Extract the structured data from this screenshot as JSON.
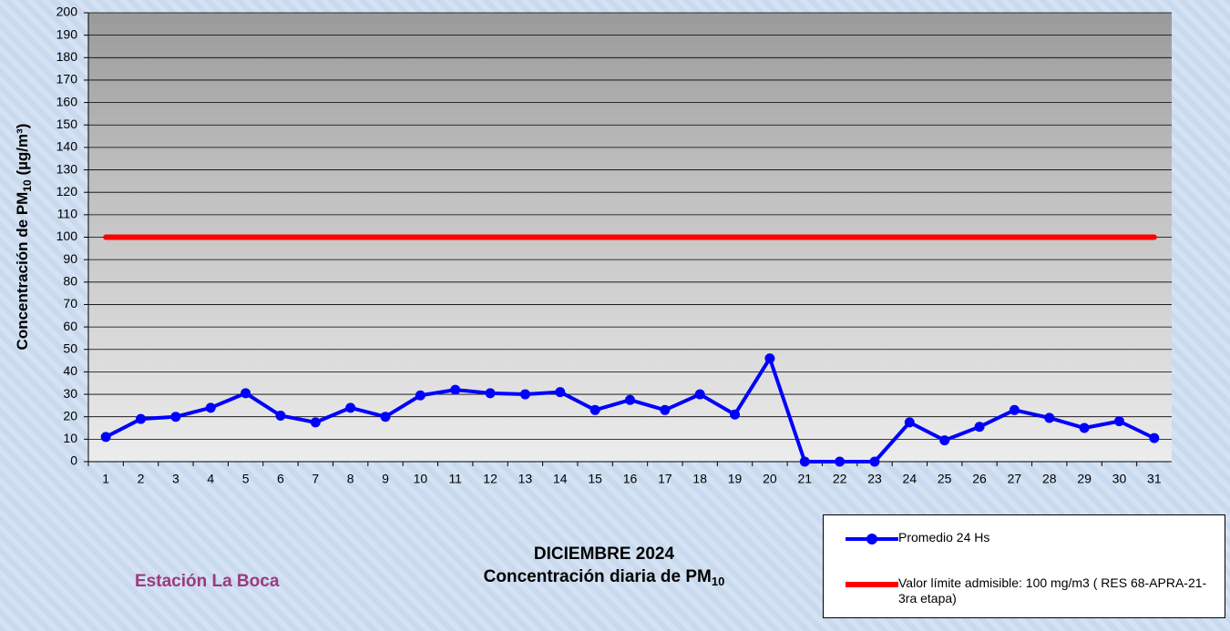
{
  "chart_data": {
    "type": "line",
    "title": "DICIEMBRE 2024",
    "subtitle": {
      "text": "Concentración diaria de PM",
      "subscript": "10"
    },
    "y_label": {
      "text": "Concentración de PM",
      "subscript": "10",
      "unit": " (µg/m³)"
    },
    "annotation": "Estación La Boca",
    "categories": [
      "1",
      "2",
      "3",
      "4",
      "5",
      "6",
      "7",
      "8",
      "9",
      "10",
      "11",
      "12",
      "13",
      "14",
      "15",
      "16",
      "17",
      "18",
      "19",
      "20",
      "21",
      "22",
      "23",
      "24",
      "25",
      "26",
      "27",
      "28",
      "29",
      "30",
      "31"
    ],
    "series": [
      {
        "name": "Promedio 24 Hs",
        "color": "#0000ff",
        "markers": true,
        "values": [
          11,
          19,
          20,
          24,
          30.5,
          20.5,
          17.5,
          24,
          20,
          29.5,
          32,
          30.5,
          30,
          31,
          23,
          27.5,
          23,
          30,
          21,
          46,
          0,
          0,
          0,
          17.5,
          9.5,
          15.5,
          23,
          19.5,
          15,
          18,
          10.5
        ]
      },
      {
        "name": "Valor límite admisible: 100 mg/m3 ( RES 68-APRA-21- 3ra etapa)",
        "color": "#ff0000",
        "markers": false,
        "values": [
          100,
          100,
          100,
          100,
          100,
          100,
          100,
          100,
          100,
          100,
          100,
          100,
          100,
          100,
          100,
          100,
          100,
          100,
          100,
          100,
          100,
          100,
          100,
          100,
          100,
          100,
          100,
          100,
          100,
          100,
          100
        ]
      }
    ],
    "ylim": [
      0,
      200
    ],
    "yticks": [
      0,
      10,
      20,
      30,
      40,
      50,
      60,
      70,
      80,
      90,
      100,
      110,
      120,
      130,
      140,
      150,
      160,
      170,
      180,
      190,
      200
    ],
    "grid": true
  }
}
